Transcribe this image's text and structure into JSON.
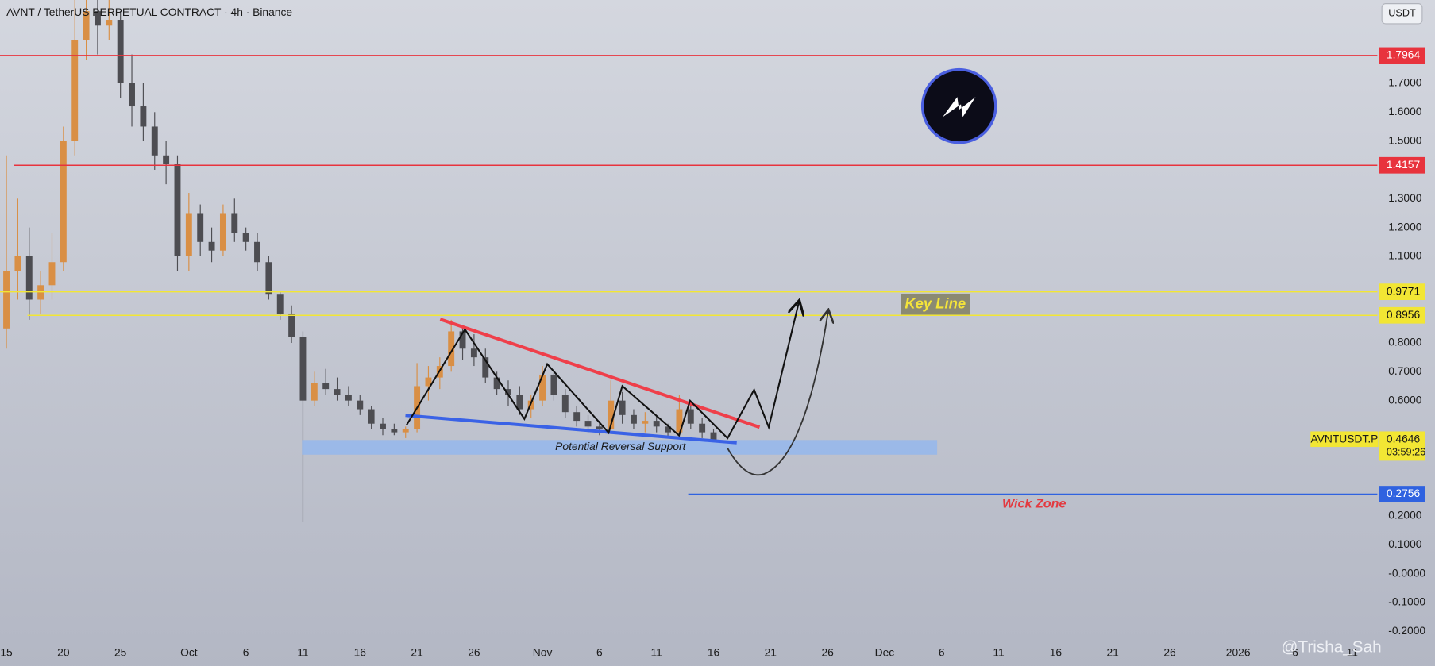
{
  "chart_data": {
    "type": "candlestick",
    "title": "AVNT / TetherUS PERPETUAL CONTRACT · 4h · Binance",
    "currency": "USDT",
    "symbol": "AVNTUSDT.P",
    "last_price": 0.4646,
    "countdown": "03:59:26",
    "watermark": "@Trisha_Sah",
    "annotations": {
      "key_line": "Key Line",
      "support": "Potential Reversal Support",
      "wick_zone": "Wick Zone"
    },
    "up_color": "#d98f45",
    "down_color": "#4d4d52",
    "x": [
      0,
      1,
      2,
      3,
      4,
      5,
      6,
      7,
      8,
      9,
      10,
      11,
      12,
      13,
      14,
      15,
      16,
      17,
      18,
      19,
      20,
      21,
      22,
      23,
      24,
      25,
      26,
      27,
      28,
      29,
      30,
      31,
      32,
      33,
      34,
      35,
      36,
      37,
      38,
      39,
      40,
      41,
      42,
      43,
      44,
      45,
      46,
      47,
      48,
      49,
      50,
      51,
      52,
      53,
      54,
      55,
      56,
      57,
      58,
      59,
      60,
      61,
      62
    ],
    "open": [
      0.85,
      1.05,
      1.1,
      0.95,
      1.0,
      1.08,
      1.5,
      1.85,
      1.95,
      1.9,
      1.92,
      1.7,
      1.62,
      1.55,
      1.45,
      1.42,
      1.1,
      1.25,
      1.15,
      1.12,
      1.25,
      1.18,
      1.15,
      1.08,
      0.97,
      0.9,
      0.82,
      0.6,
      0.66,
      0.64,
      0.62,
      0.6,
      0.57,
      0.52,
      0.5,
      0.49,
      0.5,
      0.65,
      0.68,
      0.72,
      0.84,
      0.78,
      0.75,
      0.68,
      0.64,
      0.62,
      0.57,
      0.6,
      0.69,
      0.62,
      0.56,
      0.53,
      0.51,
      0.5,
      0.6,
      0.55,
      0.52,
      0.53,
      0.51,
      0.49,
      0.57,
      0.52,
      0.49
    ],
    "high": [
      1.45,
      1.3,
      1.2,
      1.05,
      1.18,
      1.55,
      2.0,
      2.1,
      2.05,
      2.0,
      1.95,
      1.8,
      1.7,
      1.6,
      1.5,
      1.45,
      1.32,
      1.28,
      1.2,
      1.28,
      1.3,
      1.2,
      1.18,
      1.1,
      0.98,
      0.93,
      0.84,
      0.7,
      0.71,
      0.68,
      0.65,
      0.62,
      0.58,
      0.54,
      0.52,
      0.51,
      0.73,
      0.72,
      0.75,
      0.88,
      0.86,
      0.83,
      0.78,
      0.7,
      0.67,
      0.65,
      0.62,
      0.72,
      0.7,
      0.64,
      0.58,
      0.55,
      0.53,
      0.67,
      0.63,
      0.57,
      0.56,
      0.55,
      0.52,
      0.62,
      0.59,
      0.54,
      0.5
    ],
    "low": [
      0.78,
      0.95,
      0.88,
      0.9,
      0.95,
      1.05,
      1.45,
      1.78,
      1.8,
      1.85,
      1.65,
      1.55,
      1.5,
      1.4,
      1.35,
      1.05,
      1.05,
      1.1,
      1.08,
      1.1,
      1.15,
      1.12,
      1.05,
      0.95,
      0.88,
      0.8,
      0.18,
      0.58,
      0.62,
      0.6,
      0.58,
      0.55,
      0.5,
      0.48,
      0.48,
      0.47,
      0.49,
      0.6,
      0.64,
      0.7,
      0.74,
      0.72,
      0.66,
      0.62,
      0.58,
      0.55,
      0.54,
      0.58,
      0.6,
      0.54,
      0.51,
      0.49,
      0.48,
      0.49,
      0.52,
      0.5,
      0.49,
      0.49,
      0.47,
      0.48,
      0.5,
      0.47,
      0.46
    ],
    "close": [
      1.05,
      1.1,
      0.95,
      1.0,
      1.08,
      1.5,
      1.85,
      1.95,
      1.9,
      1.92,
      1.7,
      1.62,
      1.55,
      1.45,
      1.42,
      1.1,
      1.25,
      1.15,
      1.12,
      1.25,
      1.18,
      1.15,
      1.08,
      0.97,
      0.9,
      0.82,
      0.6,
      0.66,
      0.64,
      0.62,
      0.6,
      0.57,
      0.52,
      0.5,
      0.49,
      0.5,
      0.65,
      0.68,
      0.72,
      0.84,
      0.78,
      0.75,
      0.68,
      0.64,
      0.62,
      0.57,
      0.6,
      0.69,
      0.62,
      0.56,
      0.53,
      0.51,
      0.5,
      0.6,
      0.55,
      0.52,
      0.53,
      0.51,
      0.49,
      0.57,
      0.52,
      0.49,
      0.4646
    ],
    "xlim": [
      -0.56,
      120.2
    ],
    "xticks": [
      {
        "value": 0,
        "label": "15"
      },
      {
        "value": 5,
        "label": "20"
      },
      {
        "value": 10,
        "label": "25"
      },
      {
        "value": 16,
        "label": "Oct"
      },
      {
        "value": 21,
        "label": "6"
      },
      {
        "value": 26,
        "label": "11"
      },
      {
        "value": 31,
        "label": "16"
      },
      {
        "value": 36,
        "label": "21"
      },
      {
        "value": 41,
        "label": "26"
      },
      {
        "value": 47,
        "label": "Nov"
      },
      {
        "value": 52,
        "label": "6"
      },
      {
        "value": 57,
        "label": "11"
      },
      {
        "value": 62,
        "label": "16"
      },
      {
        "value": 67,
        "label": "21"
      },
      {
        "value": 72,
        "label": "26"
      },
      {
        "value": 77,
        "label": "Dec"
      },
      {
        "value": 82,
        "label": "6"
      },
      {
        "value": 87,
        "label": "11"
      },
      {
        "value": 92,
        "label": "16"
      },
      {
        "value": 97,
        "label": "21"
      },
      {
        "value": 102,
        "label": "26"
      },
      {
        "value": 108,
        "label": "2026"
      },
      {
        "value": 113,
        "label": "6"
      },
      {
        "value": 118,
        "label": "11"
      }
    ],
    "ylim": [
      -0.2313,
      1.9888
    ],
    "yticks": [
      {
        "value": 1.7,
        "label": "1.7000"
      },
      {
        "value": 1.6,
        "label": "1.6000"
      },
      {
        "value": 1.5,
        "label": "1.5000"
      },
      {
        "value": 1.3,
        "label": "1.3000"
      },
      {
        "value": 1.2,
        "label": "1.2000"
      },
      {
        "value": 1.1,
        "label": "1.1000"
      },
      {
        "value": 0.8,
        "label": "0.8000"
      },
      {
        "value": 0.7,
        "label": "0.7000"
      },
      {
        "value": 0.6,
        "label": "0.6000"
      },
      {
        "value": 0.2,
        "label": "0.2000"
      },
      {
        "value": 0.1,
        "label": "0.1000"
      },
      {
        "value": 0,
        "label": "-0.0000"
      },
      {
        "value": -0.1,
        "label": "-0.1000"
      },
      {
        "value": -0.2,
        "label": "-0.2000"
      }
    ],
    "grid": false,
    "levels": [
      {
        "value": 1.7964,
        "color": "#e8333d"
      },
      {
        "value": 1.4157,
        "color": "#e8333d"
      },
      {
        "value": 0.9771,
        "color": "#f2e634"
      },
      {
        "value": 0.8956,
        "color": "#f2e634"
      },
      {
        "value": 0.2756,
        "color": "#2f62e0"
      }
    ]
  }
}
